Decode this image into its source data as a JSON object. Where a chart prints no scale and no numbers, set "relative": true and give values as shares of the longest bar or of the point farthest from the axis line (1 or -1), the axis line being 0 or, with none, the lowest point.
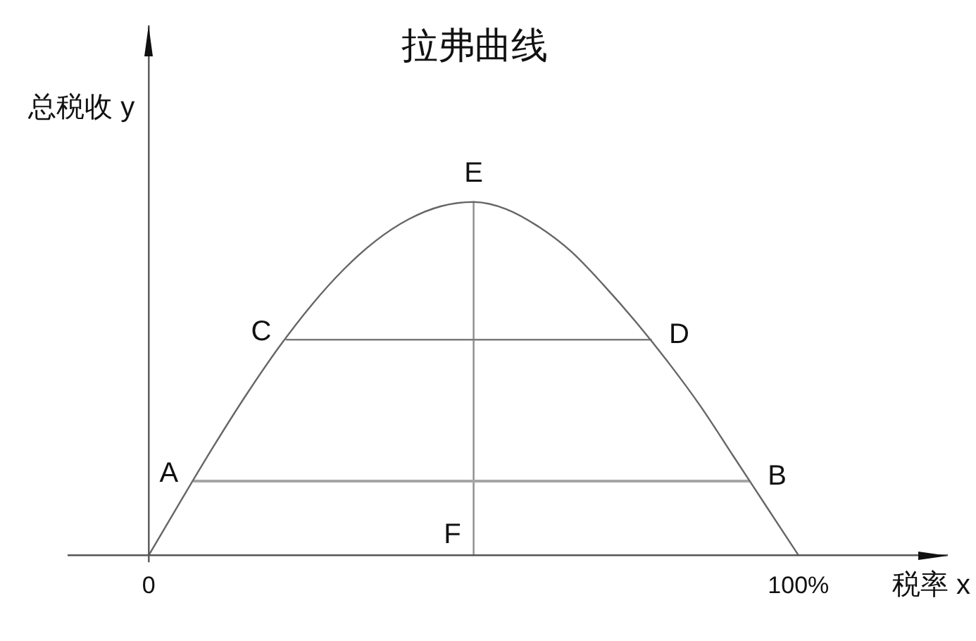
{
  "chart_data": {
    "type": "line",
    "title": "拉弗曲线",
    "xlabel": "税率 x",
    "ylabel": "总税收 y",
    "relative": true,
    "x": [
      0,
      5,
      10,
      15,
      20,
      25,
      30,
      35,
      40,
      45,
      50,
      55,
      60,
      65,
      70,
      75,
      80,
      85,
      90,
      95,
      100
    ],
    "xlim": [
      -12.5,
      123
    ],
    "xticks": [
      0,
      {
        "value": 100,
        "label": "100%"
      }
    ],
    "series": [
      {
        "color": "#666666",
        "values": [
          0,
          0.156,
          0.309,
          0.454,
          0.588,
          0.707,
          0.809,
          0.891,
          0.951,
          0.988,
          1,
          0.98,
          0.93,
          0.86,
          0.765,
          0.66,
          0.545,
          0.42,
          0.28,
          0.14,
          0
        ]
      },
      {
        "type": "line",
        "color": "#a6a6a6",
        "x": [
          7,
          92.4
        ],
        "values": [
          0.21,
          0.21
        ]
      },
      {
        "type": "line",
        "color": "#7a7a7a",
        "x": [
          21.2,
          77.3
        ],
        "values": [
          0.61,
          0.61
        ]
      },
      {
        "type": "line",
        "color": "#8c8c8c",
        "x": [
          50,
          50
        ],
        "values": [
          0,
          1
        ]
      }
    ],
    "annotations": [
      {
        "text": "A",
        "x": 7,
        "y": 0.21
      },
      {
        "text": "B",
        "x": 92.4,
        "y": 0.21
      },
      {
        "text": "C",
        "x": 21.2,
        "y": 0.61
      },
      {
        "text": "D",
        "x": 77.3,
        "y": 0.61
      },
      {
        "text": "E",
        "x": 50,
        "y": 1
      },
      {
        "text": "F",
        "x": 50,
        "y": 0
      }
    ]
  }
}
